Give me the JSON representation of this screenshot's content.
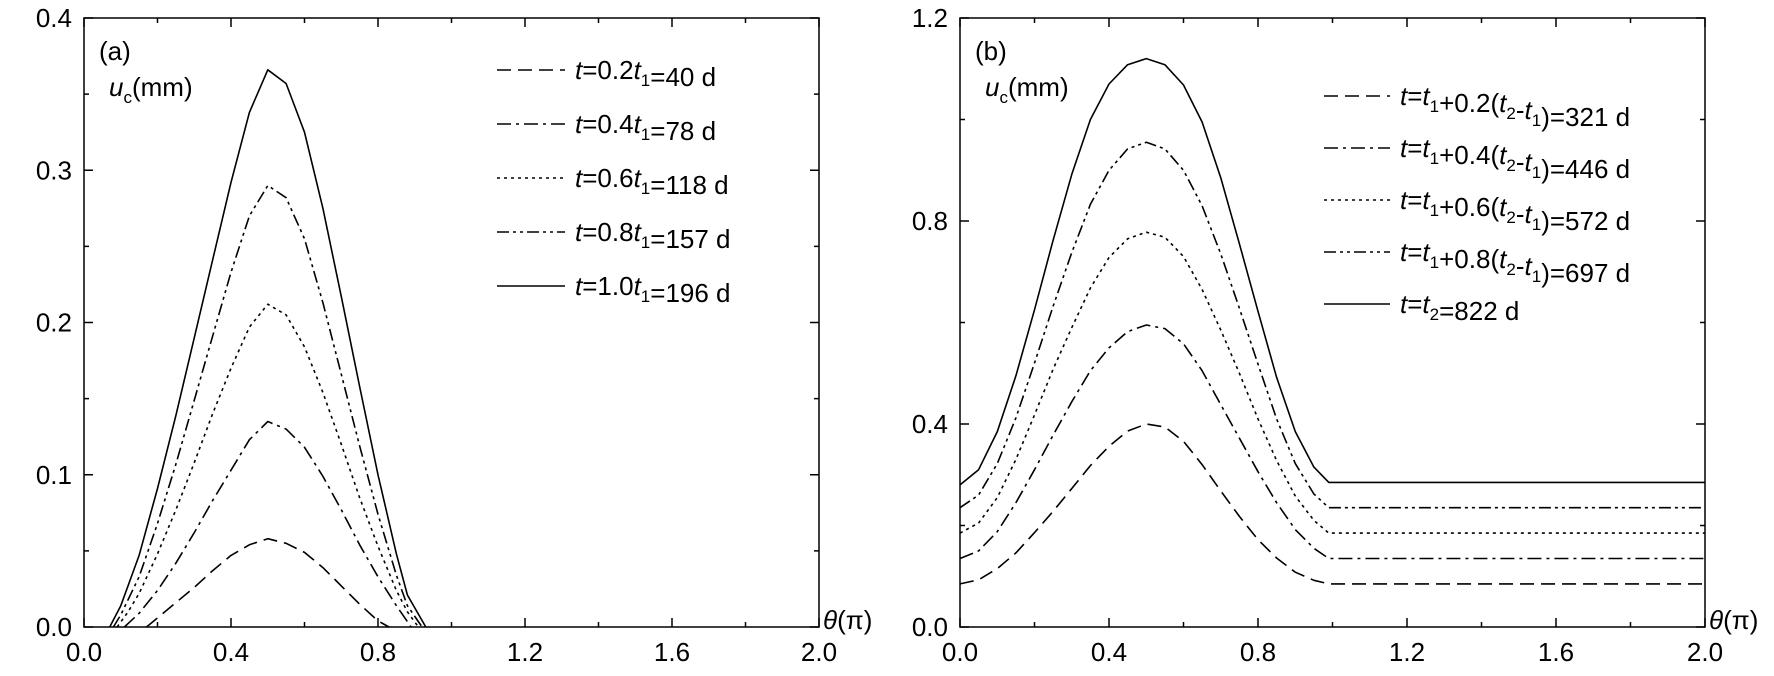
{
  "chart_data": [
    {
      "type": "line",
      "panel_label": "(a)",
      "ylabel_var": "u",
      "ylabel_sub": "c",
      "ylabel_unit": "(mm)",
      "xlabel_var": "θ",
      "xlabel_unit": "(π)",
      "xlim": [
        0.0,
        2.0
      ],
      "ylim": [
        0.0,
        0.4
      ],
      "xticks": [
        "0.0",
        "0.4",
        "0.8",
        "1.2",
        "1.6",
        "2.0"
      ],
      "yticks": [
        "0.0",
        "0.1",
        "0.2",
        "0.3",
        "0.4"
      ],
      "legend_position": "top-right",
      "series": [
        {
          "name": "t=0.2t1=40 d",
          "name_parts": [
            "t",
            "=0.2",
            "t",
            "1",
            "=40 d"
          ],
          "dash": "dash",
          "x": [
            0.17,
            0.2,
            0.25,
            0.3,
            0.35,
            0.4,
            0.45,
            0.5,
            0.55,
            0.6,
            0.65,
            0.7,
            0.75,
            0.8,
            0.83
          ],
          "y": [
            0.0,
            0.006,
            0.016,
            0.026,
            0.037,
            0.047,
            0.054,
            0.058,
            0.055,
            0.049,
            0.039,
            0.027,
            0.015,
            0.004,
            0.0
          ]
        },
        {
          "name": "t=0.4t1=78 d",
          "name_parts": [
            "t",
            "=0.4",
            "t",
            "1",
            "=78 d"
          ],
          "dash": "dashdot",
          "x": [
            0.11,
            0.15,
            0.2,
            0.25,
            0.3,
            0.35,
            0.4,
            0.45,
            0.5,
            0.55,
            0.6,
            0.65,
            0.7,
            0.75,
            0.8,
            0.85,
            0.89
          ],
          "y": [
            0.0,
            0.009,
            0.024,
            0.042,
            0.062,
            0.083,
            0.103,
            0.123,
            0.135,
            0.13,
            0.118,
            0.099,
            0.077,
            0.054,
            0.033,
            0.014,
            0.0
          ]
        },
        {
          "name": "t=0.6t1=118 d",
          "name_parts": [
            "t",
            "=0.6",
            "t",
            "1",
            "=118 d"
          ],
          "dash": "dot",
          "x": [
            0.09,
            0.12,
            0.15,
            0.2,
            0.25,
            0.3,
            0.35,
            0.4,
            0.45,
            0.5,
            0.55,
            0.6,
            0.65,
            0.7,
            0.75,
            0.8,
            0.85,
            0.88,
            0.91
          ],
          "y": [
            0.0,
            0.01,
            0.022,
            0.048,
            0.077,
            0.108,
            0.14,
            0.17,
            0.197,
            0.212,
            0.205,
            0.184,
            0.154,
            0.12,
            0.085,
            0.053,
            0.024,
            0.01,
            0.0
          ]
        },
        {
          "name": "t=0.8t1=157 d",
          "name_parts": [
            "t",
            "=0.8",
            "t",
            "1",
            "=157 d"
          ],
          "dash": "dashdotdot",
          "x": [
            0.08,
            0.1,
            0.15,
            0.2,
            0.25,
            0.3,
            0.35,
            0.4,
            0.45,
            0.5,
            0.55,
            0.6,
            0.65,
            0.7,
            0.75,
            0.8,
            0.85,
            0.88,
            0.92
          ],
          "y": [
            0.0,
            0.008,
            0.033,
            0.068,
            0.107,
            0.149,
            0.191,
            0.233,
            0.27,
            0.29,
            0.282,
            0.255,
            0.213,
            0.166,
            0.119,
            0.074,
            0.034,
            0.014,
            0.0
          ]
        },
        {
          "name": "t=1.0t1=196 d",
          "name_parts": [
            "t",
            "=1.0",
            "t",
            "1",
            "=196 d"
          ],
          "dash": "solid",
          "x": [
            0.07,
            0.1,
            0.15,
            0.2,
            0.25,
            0.3,
            0.35,
            0.4,
            0.45,
            0.5,
            0.55,
            0.6,
            0.65,
            0.7,
            0.75,
            0.8,
            0.85,
            0.88,
            0.93
          ],
          "y": [
            0.0,
            0.014,
            0.047,
            0.091,
            0.139,
            0.19,
            0.241,
            0.292,
            0.338,
            0.366,
            0.357,
            0.325,
            0.275,
            0.217,
            0.158,
            0.1,
            0.048,
            0.021,
            0.0
          ]
        }
      ]
    },
    {
      "type": "line",
      "panel_label": "(b)",
      "ylabel_var": "u",
      "ylabel_sub": "c",
      "ylabel_unit": "(mm)",
      "xlabel_var": "θ",
      "xlabel_unit": "(π)",
      "xlim": [
        0.0,
        2.0
      ],
      "ylim": [
        0.0,
        1.2
      ],
      "xticks": [
        "0.0",
        "0.4",
        "0.8",
        "1.2",
        "1.6",
        "2.0"
      ],
      "yticks": [
        "0.0",
        "0.4",
        "0.8",
        "1.2"
      ],
      "legend_position": "top-right",
      "series": [
        {
          "name": "t=t1+0.2(t2-t1)=321 d",
          "name_parts": [
            "t",
            "=",
            "t",
            "1",
            "+0.2(",
            "t",
            "2",
            "-",
            "t",
            "1",
            ")=321 d"
          ],
          "dash": "dash",
          "x": [
            0.0,
            0.05,
            0.1,
            0.15,
            0.2,
            0.25,
            0.3,
            0.35,
            0.4,
            0.45,
            0.5,
            0.55,
            0.6,
            0.65,
            0.7,
            0.75,
            0.8,
            0.85,
            0.9,
            0.95,
            0.99,
            1.2,
            1.6,
            2.0
          ],
          "y": [
            0.085,
            0.093,
            0.115,
            0.146,
            0.186,
            0.228,
            0.273,
            0.318,
            0.356,
            0.386,
            0.4,
            0.394,
            0.366,
            0.32,
            0.268,
            0.218,
            0.172,
            0.136,
            0.108,
            0.092,
            0.085,
            0.085,
            0.085,
            0.085
          ]
        },
        {
          "name": "t=t1+0.4(t2-t1)=446 d",
          "name_parts": [
            "t",
            "=",
            "t",
            "1",
            "+0.4(",
            "t",
            "2",
            "-",
            "t",
            "1",
            ")=446 d"
          ],
          "dash": "dashdot",
          "x": [
            0.0,
            0.05,
            0.1,
            0.15,
            0.2,
            0.25,
            0.3,
            0.35,
            0.4,
            0.45,
            0.5,
            0.55,
            0.6,
            0.65,
            0.7,
            0.75,
            0.8,
            0.85,
            0.9,
            0.95,
            0.99,
            1.2,
            1.6,
            2.0
          ],
          "y": [
            0.135,
            0.15,
            0.188,
            0.245,
            0.31,
            0.378,
            0.444,
            0.505,
            0.55,
            0.582,
            0.595,
            0.588,
            0.558,
            0.505,
            0.438,
            0.372,
            0.306,
            0.245,
            0.192,
            0.155,
            0.135,
            0.135,
            0.135,
            0.135
          ]
        },
        {
          "name": "t=t1+0.6(t2-t1)=572 d",
          "name_parts": [
            "t",
            "=",
            "t",
            "1",
            "+0.6(",
            "t",
            "2",
            "-",
            "t",
            "1",
            ")=572 d"
          ],
          "dash": "dot",
          "x": [
            0.0,
            0.05,
            0.1,
            0.15,
            0.2,
            0.25,
            0.3,
            0.35,
            0.4,
            0.45,
            0.5,
            0.55,
            0.6,
            0.65,
            0.7,
            0.75,
            0.8,
            0.85,
            0.9,
            0.95,
            0.99,
            1.2,
            1.6,
            2.0
          ],
          "y": [
            0.185,
            0.205,
            0.255,
            0.33,
            0.418,
            0.508,
            0.59,
            0.668,
            0.728,
            0.765,
            0.778,
            0.768,
            0.73,
            0.665,
            0.585,
            0.5,
            0.41,
            0.328,
            0.258,
            0.21,
            0.185,
            0.185,
            0.185,
            0.185
          ]
        },
        {
          "name": "t=t1+0.8(t2-t1)=697 d",
          "name_parts": [
            "t",
            "=",
            "t",
            "1",
            "+0.8(",
            "t",
            "2",
            "-",
            "t",
            "1",
            ")=697 d"
          ],
          "dash": "dashdotdot",
          "x": [
            0.0,
            0.05,
            0.1,
            0.15,
            0.2,
            0.25,
            0.3,
            0.35,
            0.4,
            0.45,
            0.5,
            0.55,
            0.6,
            0.65,
            0.7,
            0.75,
            0.8,
            0.85,
            0.9,
            0.95,
            0.99,
            1.2,
            1.6,
            2.0
          ],
          "y": [
            0.235,
            0.26,
            0.322,
            0.412,
            0.52,
            0.632,
            0.738,
            0.833,
            0.9,
            0.942,
            0.955,
            0.942,
            0.9,
            0.83,
            0.735,
            0.628,
            0.518,
            0.41,
            0.322,
            0.262,
            0.235,
            0.235,
            0.235,
            0.235
          ]
        },
        {
          "name": "t=t2=822 d",
          "name_parts": [
            "t",
            "=",
            "t",
            "2",
            "=822 d"
          ],
          "dash": "solid",
          "x": [
            0.0,
            0.05,
            0.1,
            0.15,
            0.2,
            0.25,
            0.3,
            0.35,
            0.4,
            0.45,
            0.5,
            0.55,
            0.6,
            0.65,
            0.7,
            0.75,
            0.8,
            0.85,
            0.9,
            0.95,
            0.99,
            1.2,
            1.6,
            2.0
          ],
          "y": [
            0.28,
            0.31,
            0.385,
            0.495,
            0.625,
            0.762,
            0.892,
            1.0,
            1.07,
            1.108,
            1.12,
            1.108,
            1.068,
            0.995,
            0.885,
            0.755,
            0.622,
            0.492,
            0.385,
            0.315,
            0.285,
            0.285,
            0.285,
            0.285
          ]
        }
      ]
    }
  ]
}
